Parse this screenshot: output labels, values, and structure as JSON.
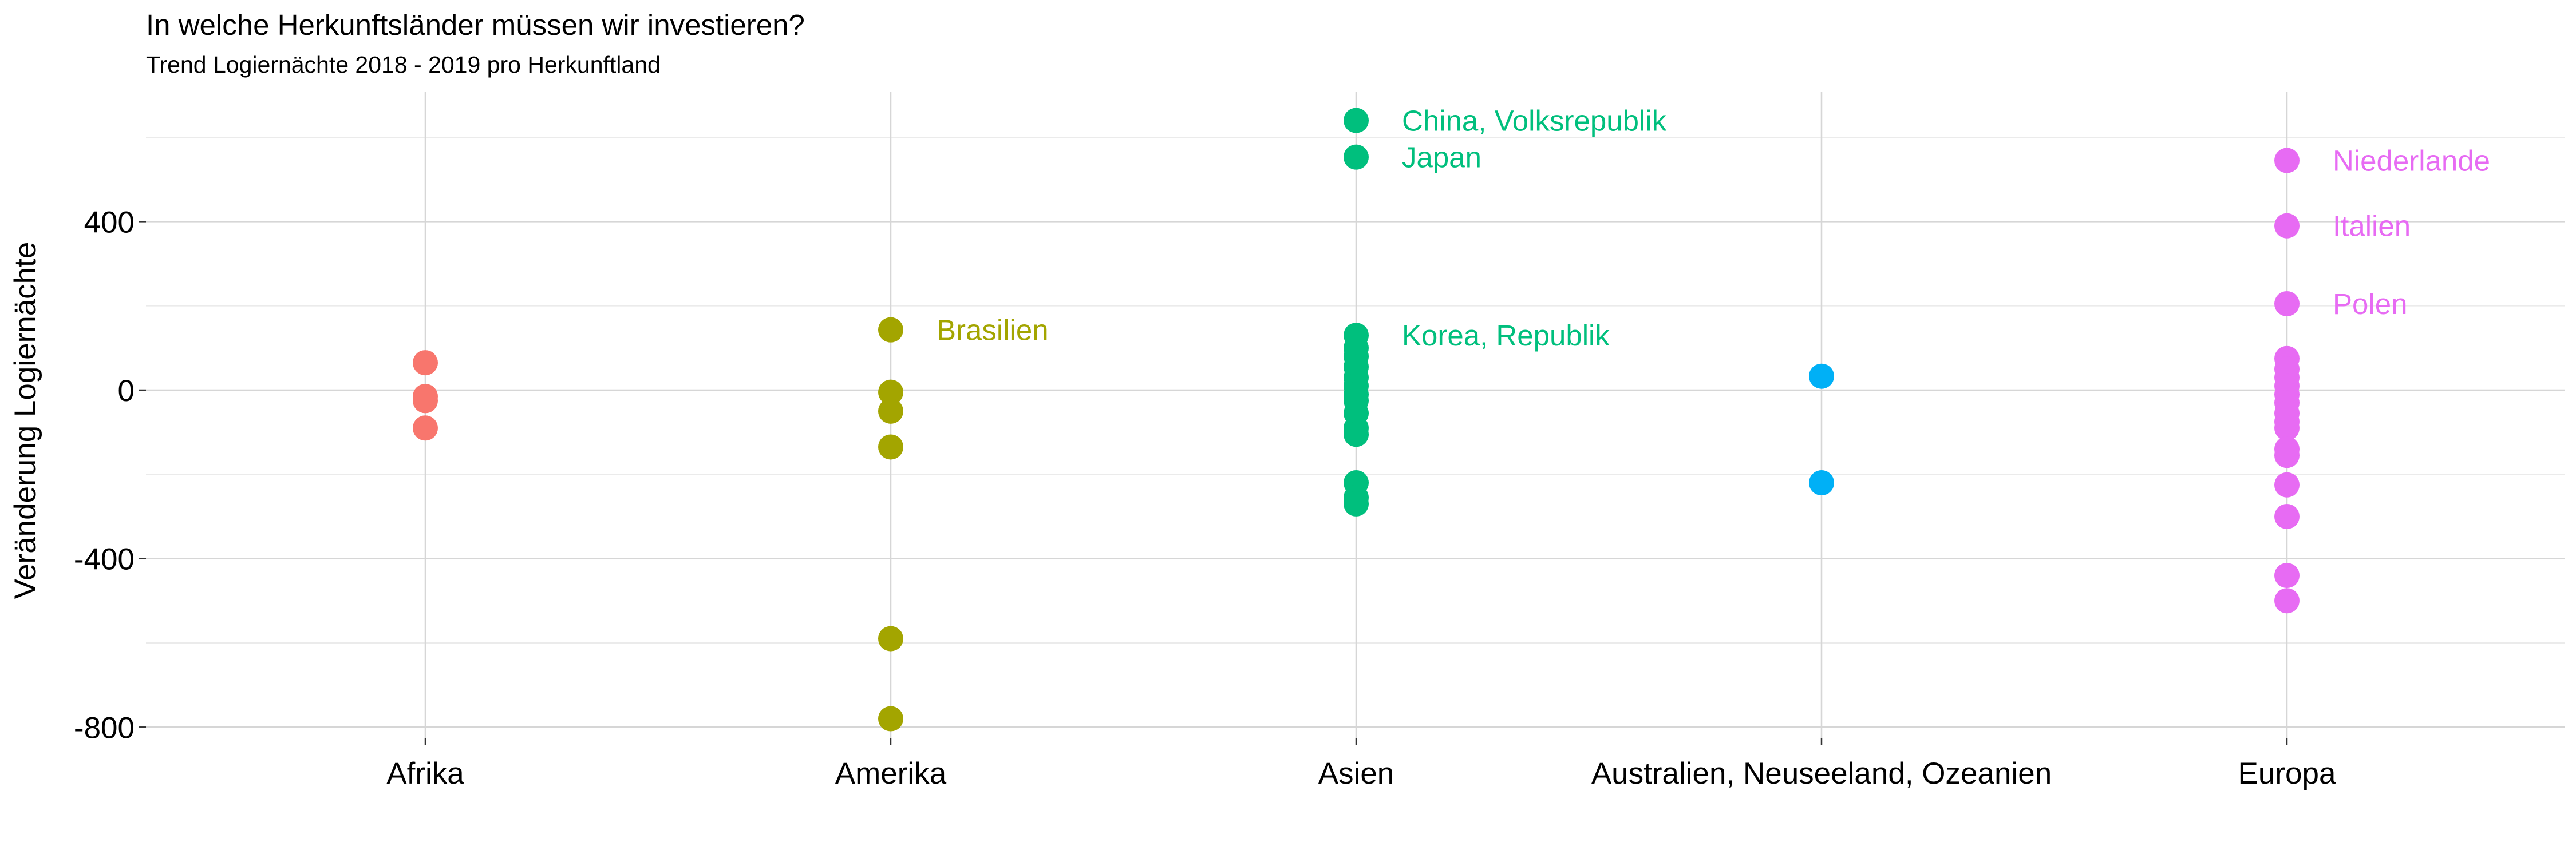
{
  "chart_data": {
    "type": "scatter",
    "title": "In welche Herkunftsländer müssen wir investieren?",
    "subtitle": "Trend Logiernächte 2018 - 2019 pro Herkunftland",
    "xlabel": "",
    "ylabel": "Veränderung Logiernächte",
    "ylim": [
      -830,
      700
    ],
    "y_ticks": [
      -800,
      -400,
      0,
      400
    ],
    "y_tick_labels": [
      "-800",
      "-400",
      "0",
      "400"
    ],
    "grid": true,
    "legend": "none",
    "categories": [
      "Afrika",
      "Amerika",
      "Asien",
      "Australien, Neuseeland, Ozeanien",
      "Europa"
    ],
    "series": [
      {
        "color": "#F8766D",
        "points": [
          {
            "y": 65
          },
          {
            "y": -15
          },
          {
            "y": -25
          },
          {
            "y": -90
          }
        ]
      },
      {
        "color": "#A3A500",
        "points": [
          {
            "y": 143,
            "label": "Brasilien"
          },
          {
            "y": -5
          },
          {
            "y": -50
          },
          {
            "y": -135
          },
          {
            "y": -590
          },
          {
            "y": -780
          }
        ]
      },
      {
        "color": "#00BF7D",
        "points": [
          {
            "y": 640,
            "label": "China, Volksrepublik"
          },
          {
            "y": 553,
            "label": "Japan"
          },
          {
            "y": 130,
            "label": "Korea, Republik"
          },
          {
            "y": 100
          },
          {
            "y": 80
          },
          {
            "y": 55
          },
          {
            "y": 30
          },
          {
            "y": 10
          },
          {
            "y": -10
          },
          {
            "y": -25
          },
          {
            "y": -55
          },
          {
            "y": -90
          },
          {
            "y": -105
          },
          {
            "y": -220
          },
          {
            "y": -255
          },
          {
            "y": -270
          }
        ]
      },
      {
        "color": "#00B0F6",
        "points": [
          {
            "y": 33
          },
          {
            "y": -220
          }
        ]
      },
      {
        "color": "#E76BF3",
        "points": [
          {
            "y": 545,
            "label": "Niederlande"
          },
          {
            "y": 390,
            "label": "Italien"
          },
          {
            "y": 205,
            "label": "Polen"
          },
          {
            "y": 75
          },
          {
            "y": 50
          },
          {
            "y": 30
          },
          {
            "y": 10
          },
          {
            "y": -10
          },
          {
            "y": -30
          },
          {
            "y": -55
          },
          {
            "y": -75
          },
          {
            "y": -90
          },
          {
            "y": -140
          },
          {
            "y": -155
          },
          {
            "y": -225
          },
          {
            "y": -300
          },
          {
            "y": -440
          },
          {
            "y": -500
          }
        ]
      }
    ]
  }
}
